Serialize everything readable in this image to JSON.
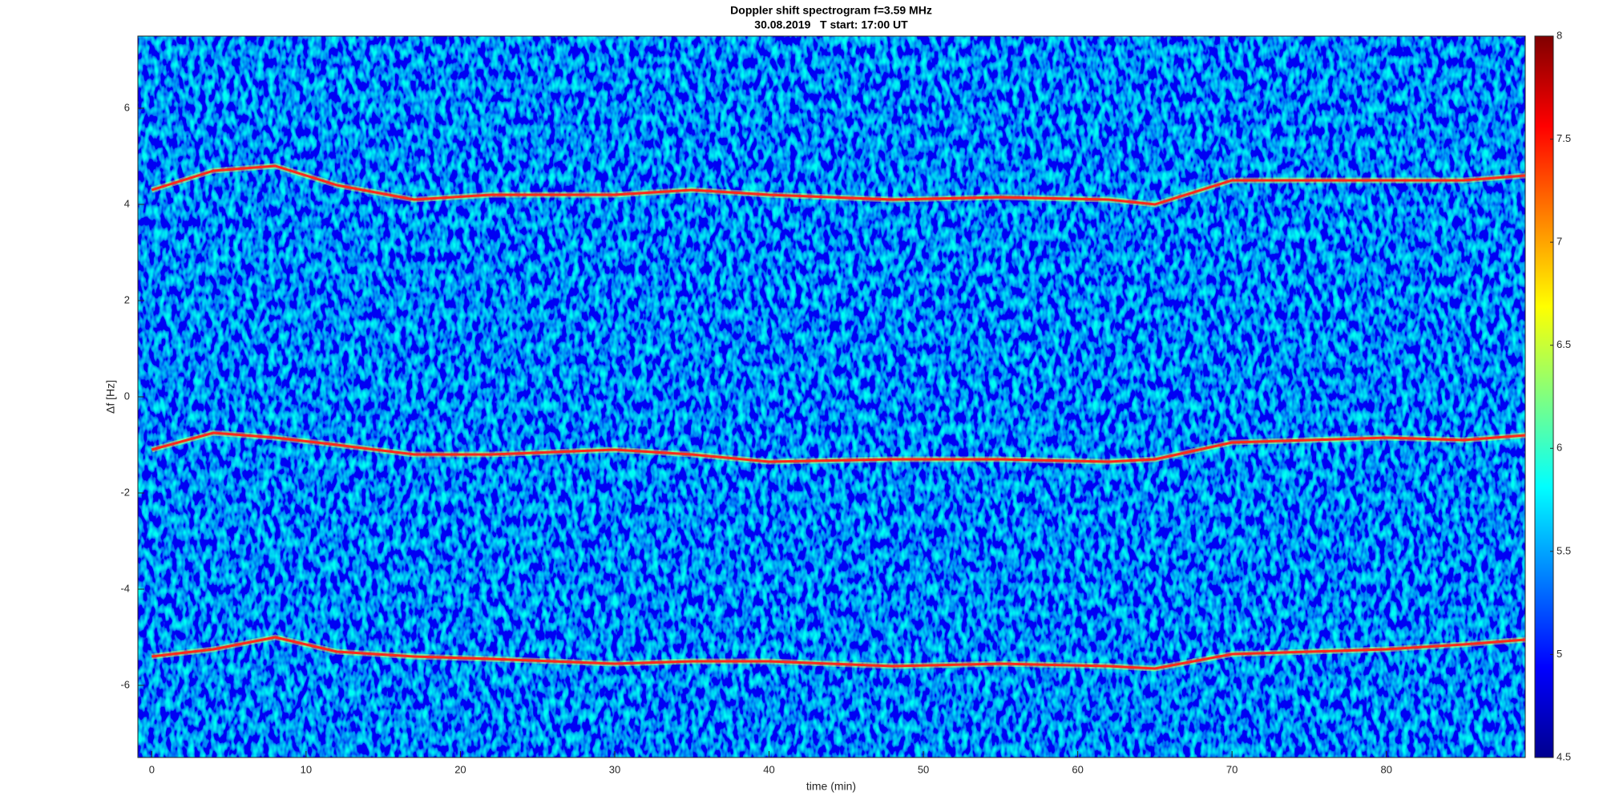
{
  "chart_data": {
    "type": "line",
    "title": "Doppler shift spectrogram f=3.59 MHz",
    "subtitle": "30.08.2019   T start: 17:00 UT",
    "x_label": "time (min)",
    "y_label": "Δf [Hz]",
    "x": [
      0,
      4,
      8,
      12,
      17,
      22,
      30,
      35,
      40,
      48,
      55,
      62,
      65,
      70,
      75,
      80,
      85,
      89
    ],
    "series": [
      {
        "color": "#ff2a1a",
        "values": [
          4.3,
          4.7,
          4.8,
          4.4,
          4.1,
          4.2,
          4.2,
          4.3,
          4.2,
          4.1,
          4.15,
          4.1,
          4.0,
          4.5,
          4.5,
          4.5,
          4.5,
          4.6
        ]
      },
      {
        "color": "#ff2a1a",
        "values": [
          -1.1,
          -0.75,
          -0.85,
          -1.0,
          -1.2,
          -1.2,
          -1.1,
          -1.2,
          -1.35,
          -1.3,
          -1.3,
          -1.35,
          -1.3,
          -0.95,
          -0.9,
          -0.85,
          -0.9,
          -0.8
        ]
      },
      {
        "color": "#ff2a1a",
        "values": [
          -5.4,
          -5.25,
          -5.0,
          -5.3,
          -5.4,
          -5.45,
          -5.55,
          -5.5,
          -5.5,
          -5.6,
          -5.55,
          -5.6,
          -5.65,
          -5.35,
          -5.3,
          -5.25,
          -5.15,
          -5.05
        ]
      }
    ],
    "xlim": [
      -0.9,
      89
    ],
    "ylim": [
      -7.5,
      7.5
    ],
    "xticks": [
      0,
      10,
      20,
      30,
      40,
      50,
      60,
      70,
      80
    ],
    "yticks": [
      -6,
      -4,
      -2,
      0,
      2,
      4,
      6
    ],
    "grid": false,
    "colorbar": {
      "lim": [
        4.5,
        8
      ],
      "ticks": [
        4.5,
        5,
        5.5,
        6,
        6.5,
        7,
        7.5,
        8
      ],
      "colors": [
        "#00008f",
        "#0000ff",
        "#0080ff",
        "#00ffff",
        "#80ff80",
        "#ffff00",
        "#ff8000",
        "#ff0000",
        "#800000"
      ]
    }
  }
}
